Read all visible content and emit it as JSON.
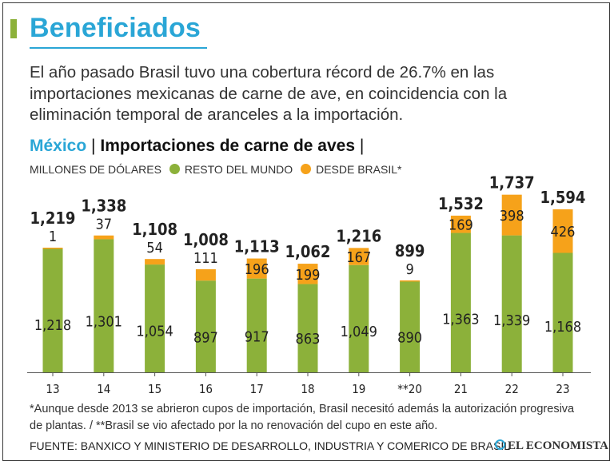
{
  "header": {
    "title": "Beneficiados",
    "lead": "El año pasado Brasil tuvo una cobertura récord de 26.7% en las importaciones mexicanas de carne de ave, en coincidencia con la eliminación temporal de aranceles a la importación.",
    "country": "México",
    "separator": "|",
    "subject": "Importaciones de carne de aves"
  },
  "legend": {
    "units": "MILLONES DE DÓLARES",
    "rest": "RESTO DEL MUNDO",
    "brazil": "DESDE BRASIL*"
  },
  "colors": {
    "accent": "#2aa6d6",
    "rest": "#8cb13a",
    "brazil": "#f6a21a"
  },
  "chart_data": {
    "type": "bar",
    "stacked": true,
    "title": "México | Importaciones de carne de aves",
    "ylabel": "Millones de dólares",
    "categories": [
      "13",
      "14",
      "15",
      "16",
      "17",
      "18",
      "19",
      "**20",
      "21",
      "22",
      "23"
    ],
    "series": [
      {
        "name": "RESTO DEL MUNDO",
        "values": [
          1218,
          1301,
          1054,
          897,
          917,
          863,
          1049,
          890,
          1363,
          1339,
          1168
        ]
      },
      {
        "name": "DESDE BRASIL*",
        "values": [
          1,
          37,
          54,
          111,
          196,
          199,
          167,
          9,
          169,
          398,
          426
        ]
      }
    ],
    "totals": [
      1219,
      1338,
      1108,
      1008,
      1113,
      1062,
      1216,
      899,
      1532,
      1737,
      1594
    ],
    "rest_labels": [
      "1,218",
      "1,301",
      "1,054",
      "897",
      "917",
      "863",
      "1,049",
      "890",
      "1,363",
      "1,339",
      "1,168"
    ],
    "brazil_labels": [
      "1",
      "37",
      "54",
      "111",
      "196",
      "199",
      "167",
      "9",
      "169",
      "398",
      "426"
    ],
    "total_labels": [
      "1,219",
      "1,338",
      "1,108",
      "1,008",
      "1,113",
      "1,062",
      "1,216",
      "899",
      "1,532",
      "1,737",
      "1,594"
    ],
    "ylim": [
      0,
      1900
    ]
  },
  "footnote": "*Aunque desde 2013 se abrieron cupos de importación, Brasil necesitó además la autorización progresiva de plantas. / **Brasil se vio afectado por la no renovación del cupo en este año.",
  "source": "FUENTE: BANXICO Y MINISTERIO DE DESARROLLO, INDUSTRIA Y COMERICO DE BRASIL",
  "brand": "EL ECONOMISTA"
}
